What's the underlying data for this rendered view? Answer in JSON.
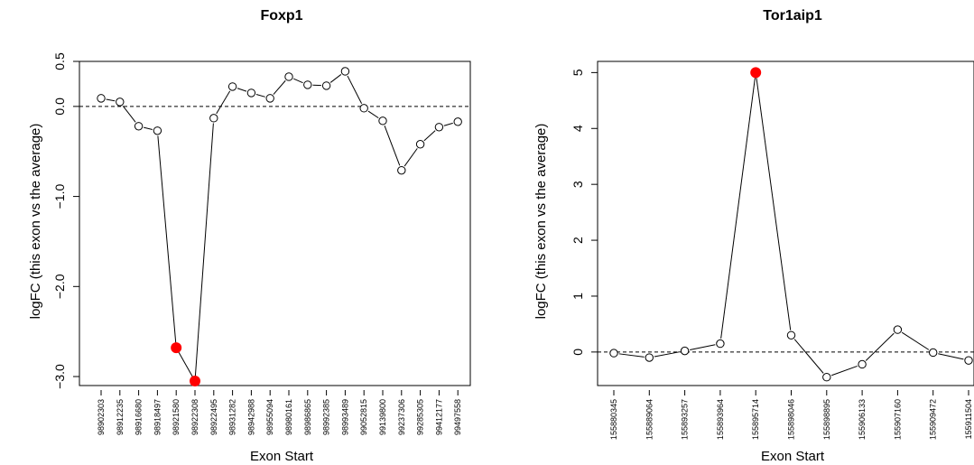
{
  "chart_data": [
    {
      "type": "line",
      "title": "Foxp1",
      "xlabel": "Exon Start",
      "ylabel": "logFC (this exon vs the average)",
      "ylim": [
        -3.1,
        0.5
      ],
      "yticks": [
        0.5,
        0.0,
        -1.0,
        -2.0,
        -3.0
      ],
      "ytick_labels": [
        "0.5",
        "0.0",
        "−1.0",
        "−2.0",
        "−3.0"
      ],
      "reference_line": 0,
      "grid": false,
      "categories": [
        "98902303",
        "98912235",
        "98916680",
        "98918497",
        "98921580",
        "98922308",
        "98922495",
        "98931282",
        "98942988",
        "98955094",
        "98980161",
        "98986865",
        "98992385",
        "98993489",
        "99052815",
        "99139800",
        "99237306",
        "99285305",
        "99412177",
        "99497558"
      ],
      "values": [
        0.09,
        0.05,
        -0.22,
        -0.27,
        -2.68,
        -3.05,
        -0.13,
        0.22,
        0.15,
        0.09,
        0.33,
        0.24,
        0.23,
        0.39,
        -0.02,
        -0.16,
        -0.71,
        -0.42,
        -0.23,
        -0.17
      ],
      "highlighted": [
        false,
        false,
        false,
        false,
        true,
        true,
        false,
        false,
        false,
        false,
        false,
        false,
        false,
        false,
        false,
        false,
        false,
        false,
        false,
        false
      ],
      "highlight_color": "#ff0000"
    },
    {
      "type": "line",
      "title": "Tor1aip1",
      "xlabel": "Exon Start",
      "ylabel": "logFC (this exon vs the average)",
      "ylim": [
        -0.6,
        5.2
      ],
      "yticks": [
        5,
        4,
        3,
        2,
        1,
        0
      ],
      "ytick_labels": [
        "5",
        "4",
        "3",
        "2",
        "1",
        "0"
      ],
      "reference_line": 0,
      "grid": false,
      "categories": [
        "155880345",
        "155889064",
        "155893257",
        "155893964",
        "155895714",
        "155898046",
        "155898895",
        "155906133",
        "155907160",
        "155909472",
        "155911504"
      ],
      "values": [
        -0.02,
        -0.1,
        0.02,
        0.15,
        5.0,
        0.3,
        -0.45,
        -0.22,
        0.4,
        -0.01,
        -0.15
      ],
      "highlighted": [
        false,
        false,
        false,
        false,
        true,
        false,
        false,
        false,
        false,
        false,
        false
      ],
      "highlight_color": "#ff0000"
    }
  ]
}
